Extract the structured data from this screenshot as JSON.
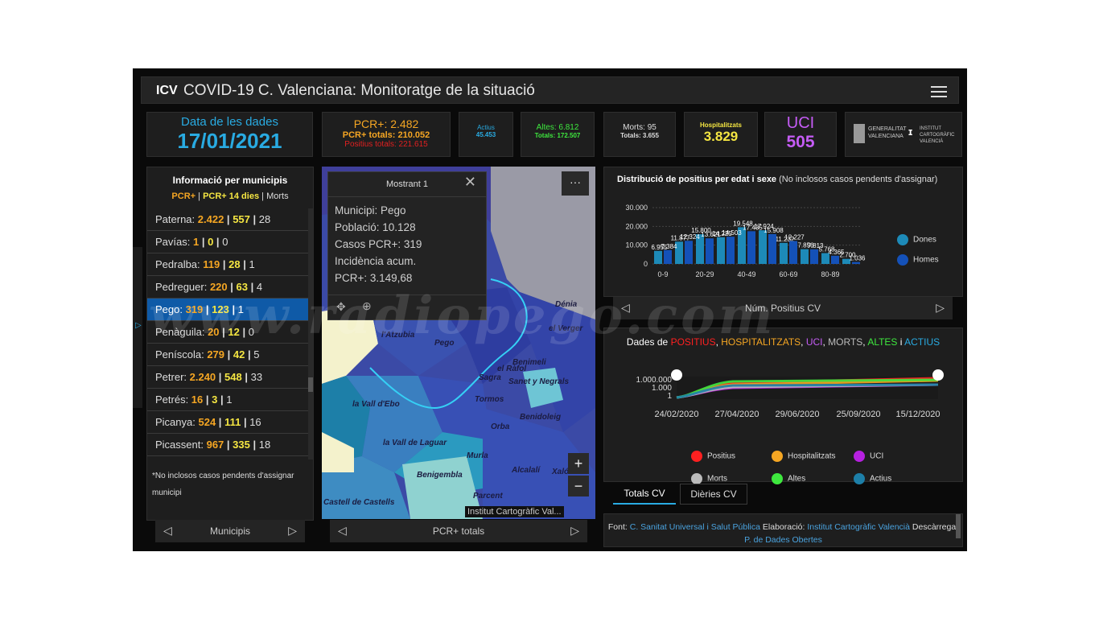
{
  "header": {
    "title": "COVID-19 C. Valenciana: Monitoratge de la situació",
    "logo_text": "ICV"
  },
  "indicators": {
    "date_label": "Data de les dades",
    "date_value": "17/01/2021",
    "pcr_today": "PCR+: 2.482",
    "pcr_total": "PCR+ totals: 210.052",
    "positius_total": "Positius totals: 221.615",
    "actius_label": "Actius",
    "actius_value": "45.453",
    "altes_label": "Altes: 6.812",
    "altes_total": "Totals: 172.507",
    "morts_label": "Morts: 95",
    "morts_total": "Totals: 3.655",
    "hosp_label": "Hospitalitzats",
    "hosp_value": "3.829",
    "uci_label": "UCI",
    "uci_value": "505",
    "logo_gva": "GENERALITAT VALENCIANA",
    "logo_icv": "INSTITUT CARTOGRÀFIC VALENCIÀ"
  },
  "municipis": {
    "title": "Informació per municipis",
    "legend_pcr": "PCR+",
    "legend_pcr14": "PCR+ 14 dies",
    "legend_morts": "Morts",
    "rows": [
      {
        "name": "Paterna:",
        "pcr": "2.422",
        "pcr14": "557",
        "morts": "28"
      },
      {
        "name": "Pavías:",
        "pcr": "1",
        "pcr14": "0",
        "morts": "0"
      },
      {
        "name": "Pedralba:",
        "pcr": "119",
        "pcr14": "28",
        "morts": "1"
      },
      {
        "name": "Pedreguer:",
        "pcr": "220",
        "pcr14": "63",
        "morts": "4"
      },
      {
        "name": "Pego:",
        "pcr": "319",
        "pcr14": "123",
        "morts": "1"
      },
      {
        "name": "Penàguila:",
        "pcr": "20",
        "pcr14": "12",
        "morts": "0"
      },
      {
        "name": "Peníscola:",
        "pcr": "279",
        "pcr14": "42",
        "morts": "5"
      },
      {
        "name": "Petrer:",
        "pcr": "2.240",
        "pcr14": "548",
        "morts": "33"
      },
      {
        "name": "Petrés:",
        "pcr": "16",
        "pcr14": "3",
        "morts": "1"
      },
      {
        "name": "Picanya:",
        "pcr": "524",
        "pcr14": "111",
        "morts": "16"
      },
      {
        "name": "Picassent:",
        "pcr": "967",
        "pcr14": "335",
        "morts": "18"
      }
    ],
    "note": "*No inclosos casos pendents d'assignar municipi",
    "pager": "Municipis"
  },
  "map": {
    "popup_header": "Mostrant 1",
    "popup_lines": [
      "Municipi: Pego",
      "Població: 10.128",
      "Casos PCR+: 319",
      "Incidència acum.",
      "PCR+: 3.149,68"
    ],
    "labels": [
      "Dénia",
      "el Verger",
      "l'Atzubia",
      "Pego",
      "Benimeli",
      "el Ràfol",
      "Sanet y Negrals",
      "Sagra",
      "Tormos",
      "la Vall d'Ebo",
      "Orba",
      "Benidoleig",
      "la Vall de Laguar",
      "Murla",
      "Alcalalí",
      "Benigembla",
      "Parcent",
      "Castell de Castells",
      "Xaló"
    ],
    "attribution": "Institut Cartogràfic Val...",
    "pager": "PCR+ totals",
    "more": "···",
    "zoom_in": "+",
    "zoom_out": "−"
  },
  "chart1": {
    "title": "Distribució de positius per edat i sexe",
    "subtitle": "(No inclosos casos pendents d'assignar)",
    "pager": "Núm. Positius CV",
    "legend": [
      "Dones",
      "Homes"
    ]
  },
  "chart2": {
    "title_prefix": "Dades de",
    "t_positius": "POSITIUS",
    "t_hosp": "HOSPITALITZATS",
    "t_uci": "UCI",
    "t_morts": "MORTS",
    "t_altes": "ALTES",
    "t_i": "i",
    "t_actius": "ACTIUS",
    "legend": [
      "Positius",
      "Hospitalitzats",
      "UCI",
      "Morts",
      "Altes",
      "Actius"
    ]
  },
  "tabs": {
    "totals": "Totals CV",
    "diaries": "Dièries CV"
  },
  "source": {
    "font_label": "Font:",
    "font_value": "C. Sanitat Universal i Salut Pública",
    "elab_label": "Elaboració:",
    "elab_value": "Institut Cartogràfic Valencià",
    "desc_label": "Descàrrega:",
    "desc_value": "P. de Dades Obertes"
  },
  "watermark": "www.radiopego.com",
  "chart_data": [
    {
      "type": "bar",
      "title": "Distribució de positius per edat i sexe",
      "categories": [
        "0-9",
        "10-19",
        "20-29",
        "30-39",
        "40-49",
        "50-59",
        "60-69",
        "70-79",
        "80-89",
        "90+"
      ],
      "tick_labels": [
        "0-9",
        "20-29",
        "40-49",
        "60-69",
        "80-89"
      ],
      "series": [
        {
          "name": "Dones",
          "values": [
            6955,
            11877,
            15800,
            14225,
            19548,
            17924,
            11232,
            7856,
            5768,
            2700
          ]
        },
        {
          "name": "Homes",
          "values": [
            7384,
            12324,
            13621,
            14503,
            17435,
            15908,
            12227,
            7813,
            4365,
            1036
          ]
        }
      ],
      "yticks": [
        "0",
        "10.000",
        "20.000",
        "30.000"
      ],
      "ylim": [
        0,
        30000
      ],
      "xlabel": "Núm. Positius CV"
    },
    {
      "type": "line",
      "title": "Dades de POSITIUS, HOSPITALITZATS, UCI, MORTS, ALTES i ACTIUS",
      "x_ticks": [
        "24/02/2020",
        "27/04/2020",
        "29/06/2020",
        "25/09/2020",
        "15/12/2020"
      ],
      "y_ticks": [
        "1.000.000",
        "1.000",
        "1"
      ],
      "scale": "log",
      "series": [
        {
          "name": "Positius",
          "color": "#ff2020"
        },
        {
          "name": "Hospitalitzats",
          "color": "#f5a623"
        },
        {
          "name": "UCI",
          "color": "#b620e0"
        },
        {
          "name": "Morts",
          "color": "#bbbbbb"
        },
        {
          "name": "Altes",
          "color": "#3ee83e"
        },
        {
          "name": "Actius",
          "color": "#1d7fa8"
        }
      ]
    }
  ],
  "colors": {
    "accent": "#29abe2",
    "selected": "#0f5aa7",
    "pcr": "#f5a623",
    "pcr14": "#f5e642",
    "uci": "#c55cf5"
  }
}
